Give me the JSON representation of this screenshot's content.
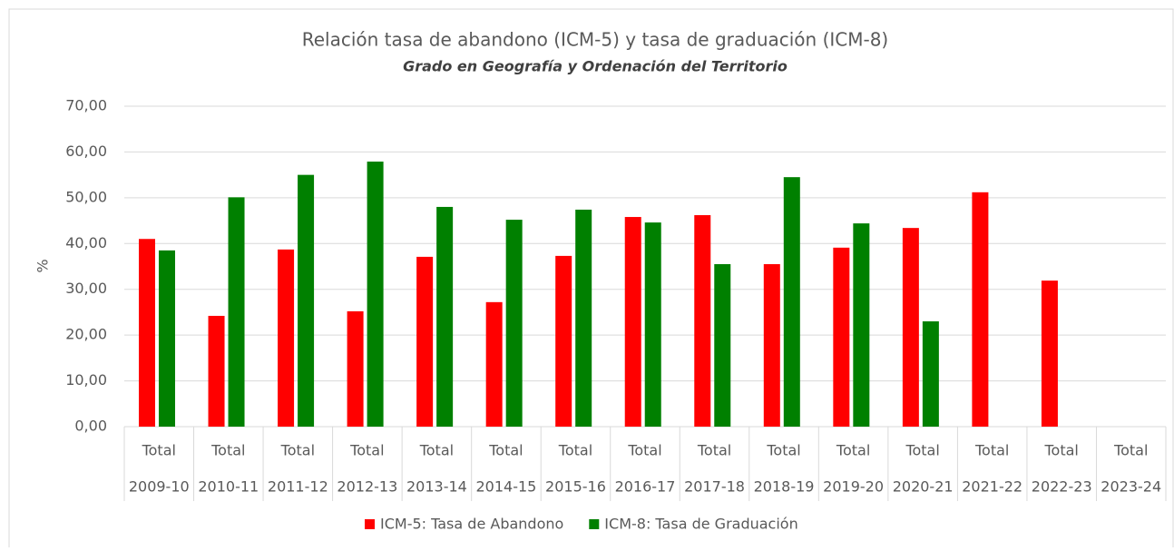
{
  "chart_data": {
    "type": "bar",
    "title": "Relación tasa de abandono (ICM-5) y tasa de graduación (ICM-8)",
    "subtitle": "Grado en Geografía y Ordenación del Territorio",
    "y_label": "%",
    "categories": [
      "Total",
      "Total",
      "Total",
      "Total",
      "Total",
      "Total",
      "Total",
      "Total",
      "Total",
      "Total",
      "Total",
      "Total",
      "Total",
      "Total",
      "Total"
    ],
    "category_groups": [
      "2009-10",
      "2010-11",
      "2011-12",
      "2012-13",
      "2013-14",
      "2014-15",
      "2015-16",
      "2016-17",
      "2017-18",
      "2018-19",
      "2019-20",
      "2020-21",
      "2021-22",
      "2022-23",
      "2023-24"
    ],
    "series": [
      {
        "name": "ICM-5: Tasa de Abandono",
        "color": "#ff0000",
        "values": [
          41.0,
          24.2,
          38.7,
          25.2,
          37.1,
          27.2,
          37.3,
          45.8,
          46.2,
          35.5,
          39.1,
          43.4,
          51.2,
          31.9,
          null
        ]
      },
      {
        "name": "ICM-8: Tasa de Graduación",
        "color": "#008000",
        "values": [
          38.5,
          50.1,
          55.0,
          57.9,
          48.0,
          45.2,
          47.4,
          44.6,
          35.5,
          54.5,
          44.4,
          23.0,
          null,
          null,
          null
        ]
      }
    ],
    "ylim": [
      0,
      70
    ],
    "yticks": [
      {
        "value": 0,
        "label": "0,00"
      },
      {
        "value": 10,
        "label": "10,00"
      },
      {
        "value": 20,
        "label": "20,00"
      },
      {
        "value": 30,
        "label": "30,00"
      },
      {
        "value": 40,
        "label": "40,00"
      },
      {
        "value": 50,
        "label": "50,00"
      },
      {
        "value": 60,
        "label": "60,00"
      },
      {
        "value": 70,
        "label": "70,00"
      }
    ],
    "grid": true,
    "legend": "bottom"
  }
}
